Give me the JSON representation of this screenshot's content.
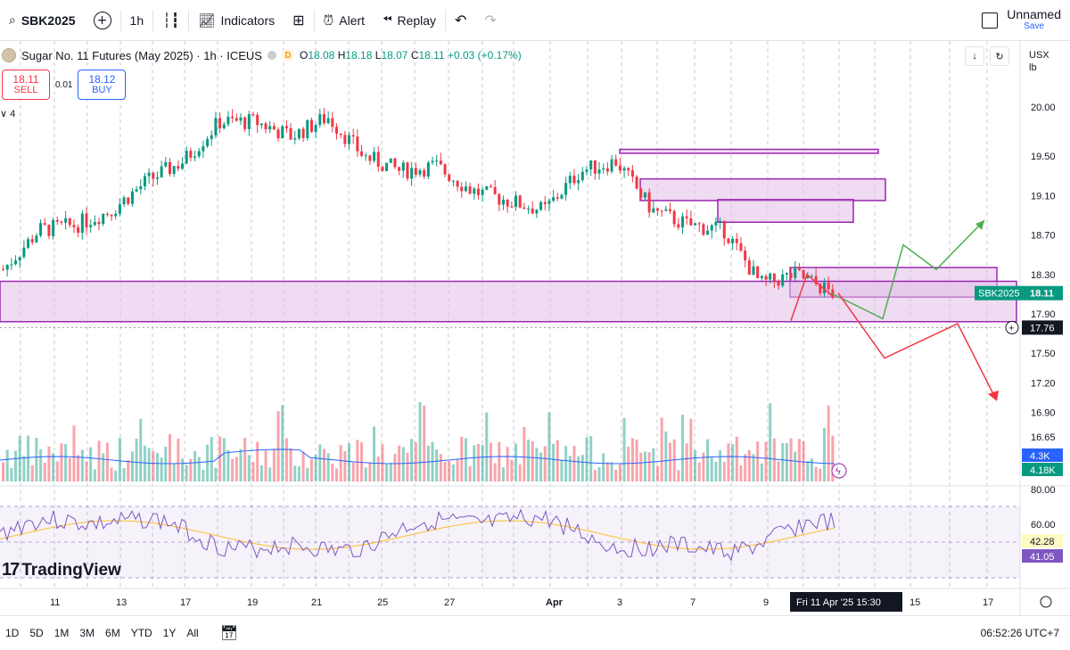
{
  "toolbar": {
    "symbol": "SBK2025",
    "interval": "1h",
    "indicators_label": "Indicators",
    "alert_label": "Alert",
    "replay_label": "Replay",
    "layout_name": "Unnamed",
    "save_label": "Save"
  },
  "legend": {
    "title": "Sugar No. 11 Futures (May 2025) · 1h · ICEUS",
    "open_label": "O",
    "open": "18.08",
    "high_label": "H",
    "high": "18.18",
    "low_label": "L",
    "low": "18.07",
    "close_label": "C",
    "close": "18.11",
    "change": "+0.03 (+0.17%)",
    "badge": "D",
    "indicator_count": "4"
  },
  "trade": {
    "sell_price": "18.11",
    "sell_label": "SELL",
    "spread": "0.01",
    "buy_price": "18.12",
    "buy_label": "BUY"
  },
  "price_axis": {
    "currency": "USX",
    "unit": "lb",
    "ticks": [
      "20.00",
      "19.50",
      "19.10",
      "18.70",
      "18.30",
      "17.90",
      "17.50",
      "17.20",
      "16.90",
      "16.65"
    ],
    "tick_values": [
      20.0,
      19.5,
      19.1,
      18.7,
      18.3,
      17.9,
      17.5,
      17.2,
      16.9,
      16.65
    ],
    "last_label": "SBK2025",
    "last_price": "18.11",
    "crosshair_price": "17.76",
    "volume_label": "4.3K",
    "volume_ma_label": "4.18K",
    "rsi_ticks": [
      "80.00",
      "60.00"
    ],
    "rsi_value": "42.28",
    "rsi_ma_value": "41.05"
  },
  "time_axis": {
    "labels": [
      "11",
      "13",
      "17",
      "19",
      "21",
      "25",
      "27",
      "Apr",
      "3",
      "7",
      "9",
      "15",
      "17"
    ],
    "crosshair_time": "Fri 11 Apr '25   15:30"
  },
  "ranges": [
    "1D",
    "5D",
    "1M",
    "3M",
    "6M",
    "YTD",
    "1Y",
    "All"
  ],
  "clock": "06:52:26 UTC+7",
  "watermark": "TradingView",
  "colors": {
    "up": "#089981",
    "down": "#f23645",
    "zone_fill": "#e1bee7",
    "zone_stroke": "#9c27b0",
    "rsi_line": "#7e57c2",
    "rsi_ma": "#fbc02d",
    "vol_ma": "#2962ff",
    "arrow_up": "#4caf50",
    "arrow_down": "#f23645"
  },
  "chart_data": {
    "type": "candlestick",
    "symbol": "SBK2025",
    "interval": "1h",
    "ylim": [
      16.55,
      20.15
    ],
    "close_series": [
      {
        "x": "Mar 10",
        "y": 18.35
      },
      {
        "x": "Mar 11",
        "y": 18.75
      },
      {
        "x": "Mar 12",
        "y": 18.8
      },
      {
        "x": "Mar 13",
        "y": 18.95
      },
      {
        "x": "Mar 14",
        "y": 19.25
      },
      {
        "x": "Mar 17",
        "y": 19.45
      },
      {
        "x": "Mar 18",
        "y": 19.85
      },
      {
        "x": "Mar 19",
        "y": 19.85
      },
      {
        "x": "Mar 20",
        "y": 19.7
      },
      {
        "x": "Mar 21",
        "y": 19.9
      },
      {
        "x": "Mar 24",
        "y": 19.5
      },
      {
        "x": "Mar 25",
        "y": 19.35
      },
      {
        "x": "Mar 26",
        "y": 19.4
      },
      {
        "x": "Mar 27",
        "y": 19.15
      },
      {
        "x": "Mar 28",
        "y": 19.05
      },
      {
        "x": "Apr 1",
        "y": 18.95
      },
      {
        "x": "Apr 2",
        "y": 19.35
      },
      {
        "x": "Apr 3",
        "y": 19.45
      },
      {
        "x": "Apr 4",
        "y": 18.95
      },
      {
        "x": "Apr 7",
        "y": 18.8
      },
      {
        "x": "Apr 8",
        "y": 18.75
      },
      {
        "x": "Apr 9",
        "y": 18.2
      },
      {
        "x": "Apr 10",
        "y": 18.3
      },
      {
        "x": "Apr 11",
        "y": 18.11
      }
    ],
    "zones": [
      {
        "from": 19.53,
        "to": 19.57
      },
      {
        "from": 19.05,
        "to": 19.27
      },
      {
        "from": 18.83,
        "to": 19.06
      },
      {
        "from": 18.07,
        "to": 18.37
      },
      {
        "from": 17.82,
        "to": 18.23
      }
    ],
    "projection_up": [
      18.11,
      17.85,
      18.6,
      18.35,
      18.85
    ],
    "projection_down": [
      18.11,
      17.45,
      17.8,
      17.05
    ],
    "rsi": {
      "overbought": 70,
      "oversold": 30,
      "last": 42.28,
      "ma_last": 41.05
    }
  }
}
